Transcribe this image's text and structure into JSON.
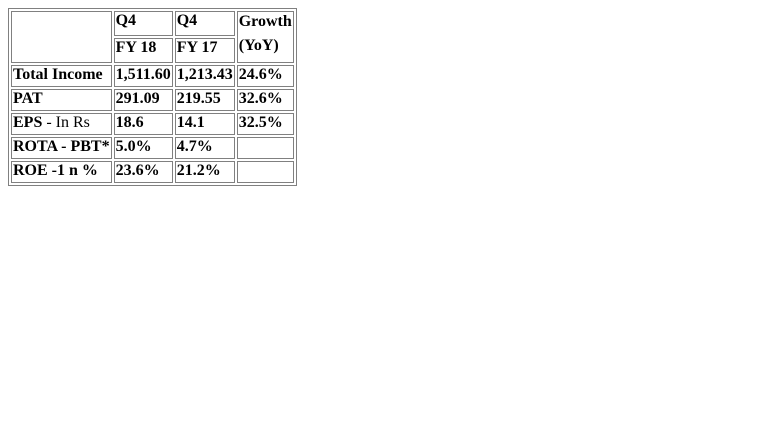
{
  "table": {
    "header": {
      "col1_line1": "Q4",
      "col1_line2": "FY 18",
      "col2_line1": "Q4",
      "col2_line2": "FY 17",
      "col3_line1": "Growth",
      "col3_line2": "(YoY)"
    },
    "rows": [
      {
        "label": "Total Income",
        "fy18": "1,511.60",
        "fy17": "1,213.43",
        "growth": "24.6%"
      },
      {
        "label": "PAT",
        "fy18": "291.09",
        "fy17": "219.55",
        "growth": "32.6%"
      },
      {
        "label_bold": "EPS",
        "label_light": " - In Rs",
        "fy18": "18.6",
        "fy17": "14.1",
        "growth": "32.5%"
      },
      {
        "label": "ROTA - PBT*",
        "fy18": "5.0%",
        "fy17": "4.7%",
        "growth": ""
      },
      {
        "label": "ROE -1 n %",
        "fy18": "23.6%",
        "fy17": "21.2%",
        "growth": ""
      }
    ]
  }
}
